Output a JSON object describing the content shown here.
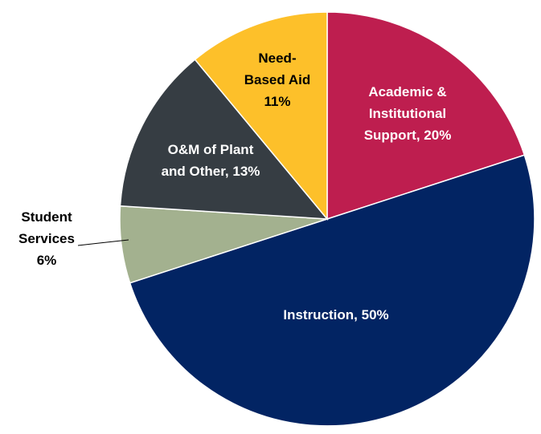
{
  "chart_data": {
    "type": "pie",
    "title": "",
    "start_angle": "12 o'clock",
    "direction": "clockwise",
    "slices": [
      {
        "name": "Academic & Institutional Support",
        "value": 20,
        "color": "#BE1E4F",
        "label_color": "#FFFFFF",
        "label_lines": [
          "Academic &",
          "Institutional",
          "Support, 20%"
        ]
      },
      {
        "name": "Instruction",
        "value": 50,
        "color": "#022463",
        "label_color": "#FFFFFF",
        "label_lines": [
          "Instruction, 50%"
        ]
      },
      {
        "name": "Student Services",
        "value": 6,
        "color": "#A3B18F",
        "label_color": "#000000",
        "label_lines": [
          "Student",
          "Services",
          "6%"
        ]
      },
      {
        "name": "O&M of Plant and Other",
        "value": 13,
        "color": "#363D43",
        "label_color": "#FFFFFF",
        "label_lines": [
          "O&M of Plant",
          "and Other, 13%"
        ]
      },
      {
        "name": "Need-Based Aid",
        "value": 11,
        "color": "#FDC02A",
        "label_color": "#000000",
        "label_lines": [
          "Need-",
          "Based Aid",
          "11%"
        ]
      }
    ]
  }
}
